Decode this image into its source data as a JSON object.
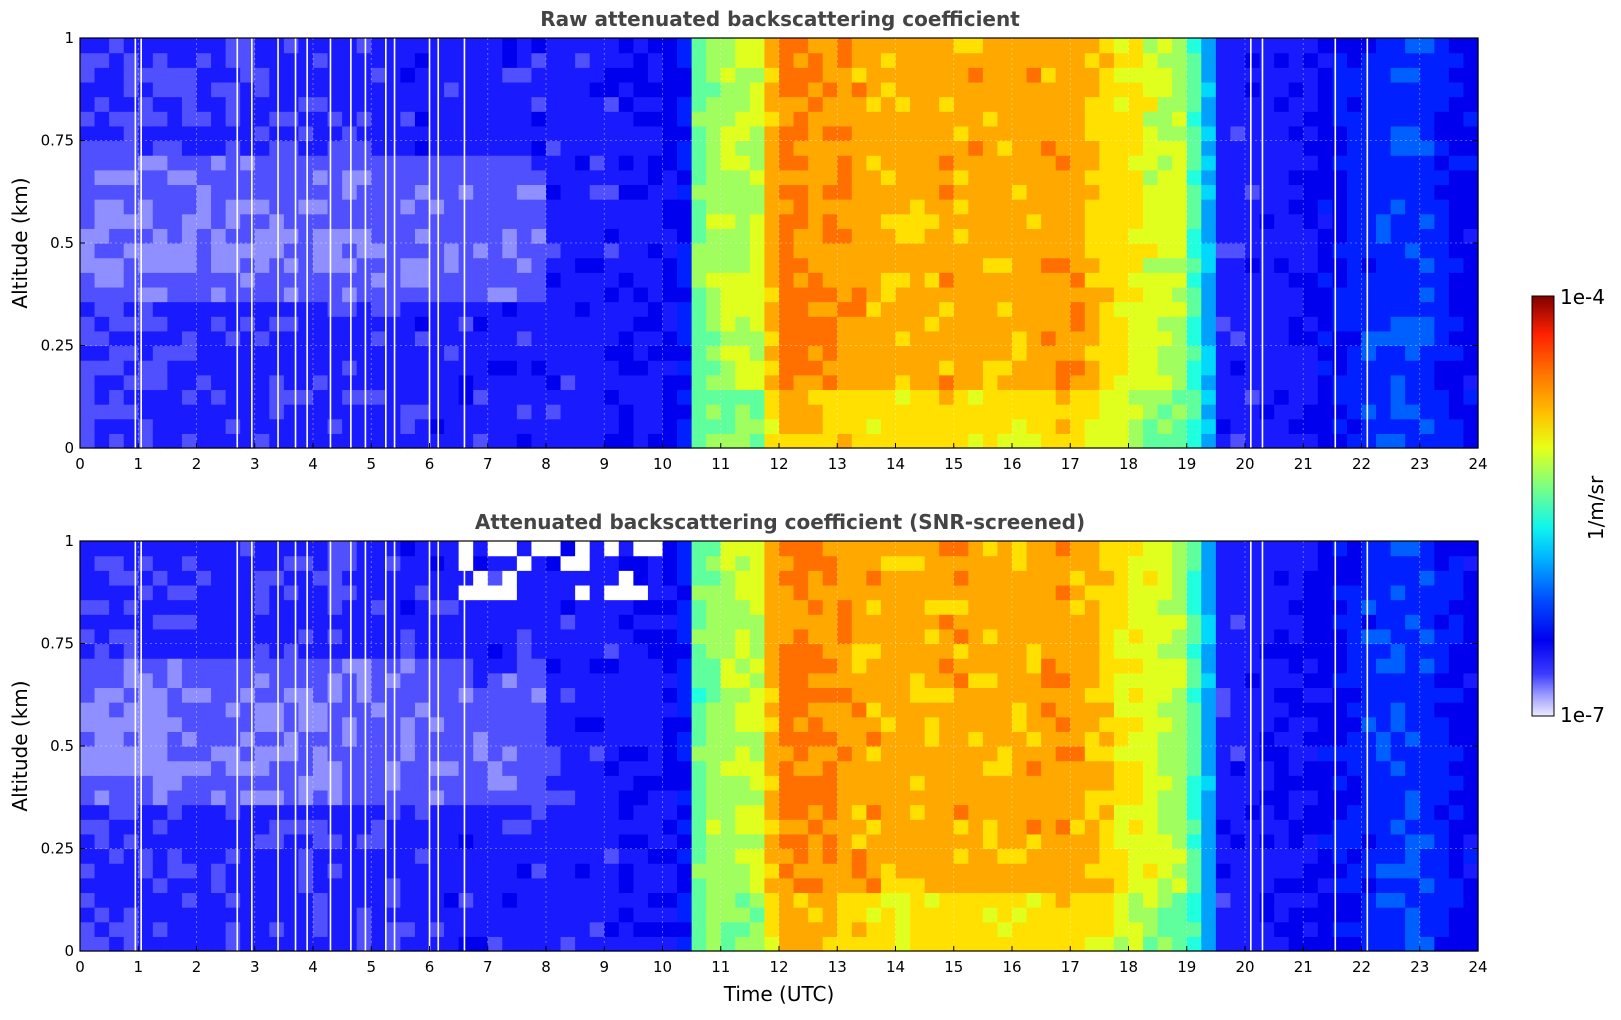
{
  "chart_data": [
    {
      "type": "heatmap",
      "title": "Raw attenuated backscattering coefficient",
      "xlabel": "",
      "ylabel": "Altitude (km)",
      "xlim": [
        0,
        24
      ],
      "ylim": [
        0,
        1
      ],
      "x_ticks": [
        "0",
        "1",
        "2",
        "3",
        "4",
        "5",
        "6",
        "7",
        "8",
        "9",
        "10",
        "11",
        "12",
        "13",
        "14",
        "15",
        "16",
        "17",
        "18",
        "19",
        "20",
        "21",
        "22",
        "23",
        "24"
      ],
      "y_ticks": [
        "0",
        "0.25",
        "0.5",
        "0.75",
        "1"
      ],
      "grid": true,
      "screened": false
    },
    {
      "type": "heatmap",
      "title": "Attenuated backscattering coefficient (SNR-screened)",
      "xlabel": "Time (UTC)",
      "ylabel": "Altitude (km)",
      "xlim": [
        0,
        24
      ],
      "ylim": [
        0,
        1
      ],
      "x_ticks": [
        "0",
        "1",
        "2",
        "3",
        "4",
        "5",
        "6",
        "7",
        "8",
        "9",
        "10",
        "11",
        "12",
        "13",
        "14",
        "15",
        "16",
        "17",
        "18",
        "19",
        "20",
        "21",
        "22",
        "23",
        "24"
      ],
      "y_ticks": [
        "0",
        "0.25",
        "0.5",
        "0.75",
        "1"
      ],
      "grid": true,
      "screened": true
    }
  ],
  "data_profile": {
    "x_hours": [
      0,
      0.5,
      1,
      2,
      3,
      4,
      5,
      6,
      7,
      8,
      9,
      10,
      10.4,
      10.6,
      11,
      11.6,
      12,
      13,
      14,
      15,
      16,
      17,
      18,
      19,
      19.4,
      19.6,
      20,
      21,
      22,
      23,
      24
    ],
    "levels": [
      0.18,
      0.18,
      0.18,
      0.19,
      0.19,
      0.19,
      0.19,
      0.2,
      0.2,
      0.2,
      0.2,
      0.22,
      0.28,
      0.55,
      0.62,
      0.62,
      0.8,
      0.76,
      0.74,
      0.75,
      0.74,
      0.76,
      0.68,
      0.6,
      0.4,
      0.2,
      0.2,
      0.22,
      0.3,
      0.32,
      0.24
    ],
    "white_gaps_hours": [
      0.95,
      1.05,
      2.7,
      2.95,
      3.4,
      3.7,
      3.9,
      4.3,
      4.65,
      4.9,
      5.25,
      5.4,
      6.0,
      6.15,
      6.6,
      20.1,
      20.3,
      21.55,
      22.1
    ]
  },
  "colorbar": {
    "label": "1/m/sr",
    "max_label": "1e-4",
    "min_label": "1e-7",
    "colors": [
      "#ececff",
      "#c9c9ff",
      "#8f8fff",
      "#5050ff",
      "#1a1aff",
      "#0000ee",
      "#0020ff",
      "#0060ff",
      "#00a0ff",
      "#00d8ff",
      "#20ffde",
      "#60ff9e",
      "#a0ff5e",
      "#e0ff1e",
      "#ffe000",
      "#ffa800",
      "#ff7000",
      "#ff3800",
      "#e00000",
      "#9a0000",
      "#7f0000"
    ]
  }
}
